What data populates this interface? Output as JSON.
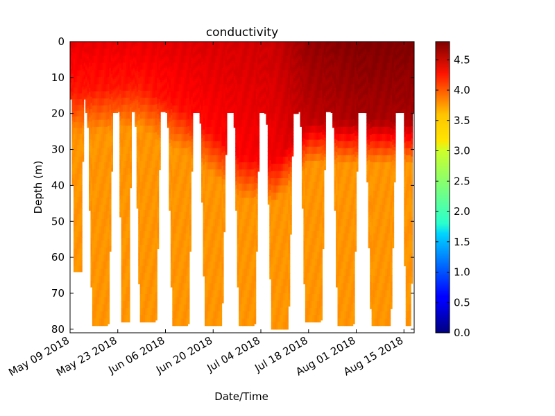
{
  "chart_data": {
    "type": "heatmap",
    "title": "conductivity",
    "xlabel": "Date/Time",
    "ylabel": "Depth (m)",
    "x_ticks": [
      "May 09 2018",
      "May 23 2018",
      "Jun 06 2018",
      "Jun 20 2018",
      "Jul 04 2018",
      "Jul 18 2018",
      "Aug 01 2018",
      "Aug 15 2018"
    ],
    "xlim": [
      "2018-05-09",
      "2018-08-18"
    ],
    "y_ticks": [
      0,
      10,
      20,
      30,
      40,
      50,
      60,
      70,
      80
    ],
    "ylim": [
      0,
      81
    ],
    "y_inverted": true,
    "colorbar": {
      "colormap": "jet",
      "range": [
        0.0,
        4.8
      ],
      "ticks": [
        "0.0",
        "0.5",
        "1.0",
        "1.5",
        "2.0",
        "2.5",
        "3.0",
        "3.5",
        "4.0",
        "4.5"
      ]
    },
    "profile_cycles": [
      {
        "start_day": 0,
        "end_day": 4.5,
        "max_depth": 64
      },
      {
        "start_day": 4.5,
        "end_day": 14,
        "max_depth": 79
      },
      {
        "start_day": 14,
        "end_day": 18.5,
        "max_depth": 78
      },
      {
        "start_day": 18.5,
        "end_day": 28,
        "max_depth": 78
      },
      {
        "start_day": 28,
        "end_day": 37.5,
        "max_depth": 79
      },
      {
        "start_day": 37.5,
        "end_day": 47.5,
        "max_depth": 79
      },
      {
        "start_day": 47.5,
        "end_day": 57,
        "max_depth": 79
      },
      {
        "start_day": 57,
        "end_day": 67,
        "max_depth": 80
      },
      {
        "start_day": 67,
        "end_day": 76.5,
        "max_depth": 78
      },
      {
        "start_day": 76.5,
        "end_day": 86,
        "max_depth": 79
      },
      {
        "start_day": 86,
        "end_day": 97.5,
        "max_depth": 79
      },
      {
        "start_day": 97.5,
        "end_day": 101,
        "max_depth": 79
      }
    ],
    "surface_layer": [
      {
        "day": 0,
        "depth": 14,
        "conductivity": 4.1
      },
      {
        "day": 20,
        "depth": 12,
        "conductivity": 4.1
      },
      {
        "day": 35,
        "depth": 20,
        "conductivity": 4.15
      },
      {
        "day": 50,
        "depth": 32,
        "conductivity": 4.2
      },
      {
        "day": 60,
        "depth": 33,
        "conductivity": 4.25
      },
      {
        "day": 70,
        "depth": 22,
        "conductivity": 4.5
      },
      {
        "day": 85,
        "depth": 22,
        "conductivity": 4.6
      },
      {
        "day": 101,
        "depth": 22,
        "conductivity": 4.6
      }
    ],
    "deep_layer_conductivity": 3.5
  }
}
